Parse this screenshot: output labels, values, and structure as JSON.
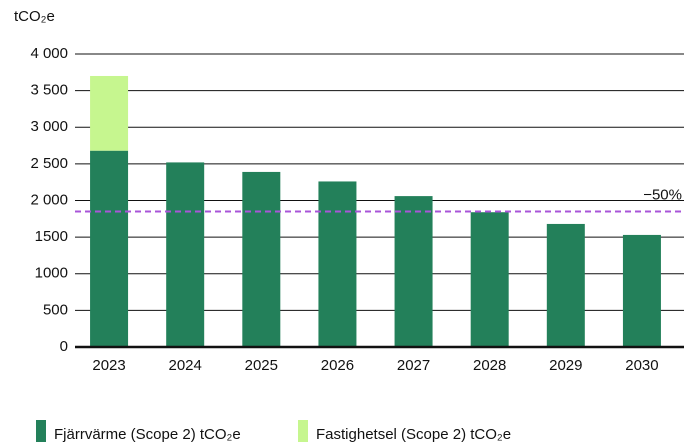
{
  "chart_data": {
    "type": "stacked_bar",
    "y_label": "tCO₂e",
    "categories": [
      "2023",
      "2024",
      "2025",
      "2026",
      "2027",
      "2028",
      "2029",
      "2030"
    ],
    "series": [
      {
        "name": "Fjärrvärme (Scope 2) tCO₂e",
        "color": "#23805a",
        "values": [
          2680,
          2520,
          2390,
          2260,
          2060,
          1840,
          1680,
          1530
        ]
      },
      {
        "name": "Fastighetsel (Scope 2) tCO₂e",
        "color": "#c6f68f",
        "values": [
          1020,
          null,
          null,
          null,
          null,
          null,
          null,
          null
        ]
      }
    ],
    "ylim": [
      0,
      4000
    ],
    "yticks": [
      0,
      500,
      1000,
      1500,
      {
        "value": 2000,
        "label": "2 000"
      },
      {
        "value": 2500,
        "label": "2 500"
      },
      {
        "value": 3000,
        "label": "3 000"
      },
      {
        "value": 3500,
        "label": "3 500"
      },
      {
        "value": 4000,
        "label": "4 000"
      }
    ],
    "grid": true,
    "reference_line": {
      "value": 1850,
      "label": "−50%",
      "color": "#a855d8"
    }
  }
}
